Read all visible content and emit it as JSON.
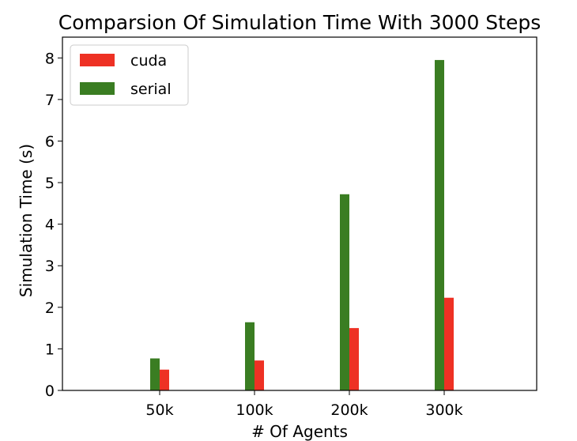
{
  "chart_data": {
    "type": "bar",
    "title": "Comparsion Of Simulation Time With 3000 Steps",
    "xlabel": "# Of Agents",
    "ylabel": "Simulation Time (s)",
    "categories": [
      "50k",
      "100k",
      "200k",
      "300k"
    ],
    "series": [
      {
        "name": "cuda",
        "color": "#ee3124",
        "values": [
          0.5,
          0.72,
          1.5,
          2.23
        ]
      },
      {
        "name": "serial",
        "color": "#3a7d22",
        "values": [
          0.77,
          1.64,
          4.72,
          7.95
        ]
      }
    ],
    "ylim": [
      0,
      8.5
    ],
    "yticks": [
      0,
      1,
      2,
      3,
      4,
      5,
      6,
      7,
      8
    ],
    "grid": false,
    "legend_position": "top-left"
  }
}
